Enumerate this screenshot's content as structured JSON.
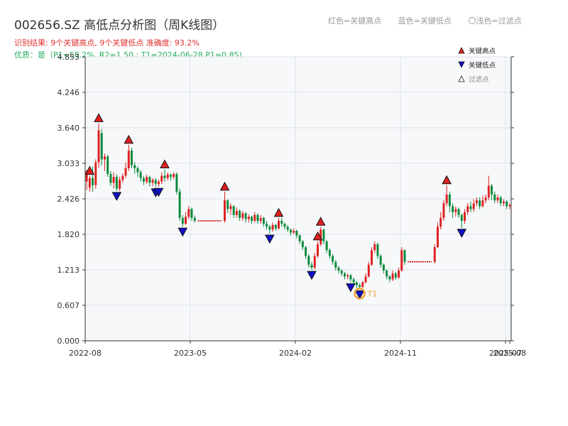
{
  "header": {
    "title": "002656.SZ 高低点分析图（周K线图）",
    "result_text": "识别结果: 9个关键高点, 9个关键低点   准确度: 93.2%",
    "quality_text": "优质：是（P1=58.2%, R2=1.50 ; T1=2024-06-28 P1=0.85)"
  },
  "top_legend": {
    "red": "红色=关键高点",
    "blue": "蓝色=关键低点",
    "light": "〇浅色=过滤点"
  },
  "colors": {
    "up": "#e02020",
    "down": "#0a8a3a",
    "high_marker": "#e02020",
    "low_marker": "#1010c8",
    "t1_ring": "#f0a030",
    "gap_line": "#cc0000",
    "plot_bg": "#f6f8fa",
    "grid": "#dde2e8"
  },
  "chart_data": {
    "type": "candlestick",
    "period": "weekly",
    "grid": true,
    "y_ticks": [
      "0.000",
      "0.607",
      "1.213",
      "1.820",
      "2.426",
      "3.033",
      "3.640",
      "4.246",
      "4.853"
    ],
    "ylim": [
      0,
      4.853
    ],
    "x_ticks": [
      "2022-08",
      "2023-05",
      "2024-02",
      "2024-11",
      "2025-07",
      "2025-08"
    ],
    "legend": {
      "placement": "top-right",
      "items": [
        {
          "label": "关键高点",
          "marker": "high"
        },
        {
          "label": "关键低点",
          "marker": "low"
        },
        {
          "label": "过滤点",
          "marker": "filtered"
        }
      ]
    },
    "annotation": "T1",
    "key_highs": [
      3.72,
      3.35,
      2.93,
      2.55,
      2.1,
      1.95,
      1.7,
      2.66,
      2.82
    ],
    "key_lows": [
      2.62,
      2.56,
      2.63,
      1.95,
      1.83,
      1.21,
      0.88,
      1.0,
      1.93
    ],
    "t1_value": 0.88,
    "candles": [
      [
        2.72,
        2.9,
        2.92,
        2.58
      ],
      [
        2.62,
        2.78,
        2.82,
        2.55
      ],
      [
        2.78,
        2.66,
        2.98,
        2.55
      ],
      [
        2.66,
        3.05,
        3.1,
        2.6
      ],
      [
        3.05,
        3.6,
        3.72,
        2.95
      ],
      [
        3.55,
        3.1,
        3.62,
        3.0
      ],
      [
        3.1,
        3.15,
        3.2,
        2.9
      ],
      [
        3.15,
        2.85,
        3.18,
        2.8
      ],
      [
        2.85,
        2.7,
        2.9,
        2.65
      ],
      [
        2.7,
        2.8,
        2.88,
        2.6
      ],
      [
        2.8,
        2.6,
        2.85,
        2.56
      ],
      [
        2.6,
        2.75,
        2.8,
        2.56
      ],
      [
        2.75,
        2.82,
        2.86,
        2.7
      ],
      [
        2.82,
        2.95,
        3.05,
        2.78
      ],
      [
        2.95,
        3.25,
        3.35,
        2.9
      ],
      [
        3.25,
        3.0,
        3.3,
        2.95
      ],
      [
        3.0,
        2.95,
        3.05,
        2.85
      ],
      [
        2.95,
        2.88,
        2.98,
        2.8
      ],
      [
        2.88,
        2.78,
        2.92,
        2.72
      ],
      [
        2.78,
        2.72,
        2.82,
        2.66
      ],
      [
        2.72,
        2.8,
        2.84,
        2.68
      ],
      [
        2.8,
        2.7,
        2.82,
        2.64
      ],
      [
        2.7,
        2.75,
        2.78,
        2.64
      ],
      [
        2.75,
        2.68,
        2.78,
        2.63
      ],
      [
        2.68,
        2.72,
        2.76,
        2.63
      ],
      [
        2.72,
        2.82,
        2.88,
        2.68
      ],
      [
        2.82,
        2.78,
        2.93,
        2.72
      ],
      [
        2.78,
        2.84,
        2.88,
        2.74
      ],
      [
        2.84,
        2.8,
        2.86,
        2.74
      ],
      [
        2.8,
        2.85,
        2.88,
        2.76
      ],
      [
        2.85,
        2.55,
        2.88,
        2.5
      ],
      [
        2.55,
        2.1,
        2.6,
        2.05
      ],
      [
        2.1,
        2.0,
        2.15,
        1.95
      ],
      [
        2.0,
        2.12,
        2.2,
        1.98
      ],
      [
        2.12,
        2.25,
        2.3,
        2.08
      ],
      [
        2.25,
        2.1,
        2.28,
        2.05
      ],
      [
        2.1,
        2.05,
        2.14,
        2.02
      ],
      [
        2.05,
        2.05,
        2.06,
        2.04
      ],
      [
        2.05,
        2.05,
        2.06,
        2.04
      ],
      [
        2.05,
        2.05,
        2.06,
        2.04
      ],
      [
        2.05,
        2.05,
        2.06,
        2.04
      ],
      [
        2.05,
        2.05,
        2.06,
        2.04
      ],
      [
        2.05,
        2.05,
        2.06,
        2.04
      ],
      [
        2.05,
        2.05,
        2.06,
        2.04
      ],
      [
        2.05,
        2.05,
        2.06,
        2.04
      ],
      [
        2.05,
        2.05,
        2.06,
        2.04
      ],
      [
        2.05,
        2.4,
        2.55,
        2.02
      ],
      [
        2.4,
        2.25,
        2.42,
        2.18
      ],
      [
        2.25,
        2.3,
        2.35,
        2.15
      ],
      [
        2.3,
        2.15,
        2.32,
        2.1
      ],
      [
        2.15,
        2.22,
        2.28,
        2.1
      ],
      [
        2.22,
        2.1,
        2.25,
        2.05
      ],
      [
        2.1,
        2.18,
        2.22,
        2.05
      ],
      [
        2.18,
        2.08,
        2.2,
        2.02
      ],
      [
        2.08,
        2.12,
        2.16,
        2.02
      ],
      [
        2.12,
        2.05,
        2.14,
        2.0
      ],
      [
        2.05,
        2.15,
        2.2,
        2.02
      ],
      [
        2.15,
        2.05,
        2.18,
        2.0
      ],
      [
        2.05,
        2.1,
        2.15,
        2.0
      ],
      [
        2.1,
        2.0,
        2.12,
        1.95
      ],
      [
        2.0,
        1.95,
        2.05,
        1.9
      ],
      [
        1.95,
        1.9,
        1.98,
        1.83
      ],
      [
        1.9,
        1.98,
        2.02,
        1.86
      ],
      [
        1.98,
        1.92,
        2.0,
        1.88
      ],
      [
        1.92,
        2.05,
        2.1,
        1.9
      ],
      [
        2.05,
        2.0,
        2.1,
        1.95
      ],
      [
        2.0,
        1.95,
        2.02,
        1.9
      ],
      [
        1.95,
        1.9,
        1.98,
        1.86
      ],
      [
        1.9,
        1.85,
        1.92,
        1.8
      ],
      [
        1.85,
        1.88,
        1.92,
        1.82
      ],
      [
        1.88,
        1.8,
        1.9,
        1.75
      ],
      [
        1.8,
        1.7,
        1.82,
        1.65
      ],
      [
        1.7,
        1.6,
        1.72,
        1.55
      ],
      [
        1.6,
        1.45,
        1.62,
        1.4
      ],
      [
        1.45,
        1.3,
        1.48,
        1.25
      ],
      [
        1.3,
        1.25,
        1.35,
        1.21
      ],
      [
        1.25,
        1.45,
        1.5,
        1.22
      ],
      [
        1.45,
        1.65,
        1.7,
        1.42
      ],
      [
        1.65,
        1.9,
        1.95,
        1.62
      ],
      [
        1.9,
        1.7,
        1.92,
        1.65
      ],
      [
        1.7,
        1.55,
        1.72,
        1.5
      ],
      [
        1.55,
        1.45,
        1.58,
        1.4
      ],
      [
        1.45,
        1.35,
        1.48,
        1.3
      ],
      [
        1.35,
        1.25,
        1.38,
        1.2
      ],
      [
        1.25,
        1.2,
        1.28,
        1.15
      ],
      [
        1.2,
        1.15,
        1.22,
        1.1
      ],
      [
        1.15,
        1.1,
        1.18,
        1.05
      ],
      [
        1.1,
        1.12,
        1.15,
        1.05
      ],
      [
        1.12,
        1.05,
        1.14,
        1.0
      ],
      [
        1.05,
        1.0,
        1.08,
        0.95
      ],
      [
        1.0,
        0.95,
        1.02,
        0.9
      ],
      [
        0.95,
        0.92,
        0.98,
        0.88
      ],
      [
        0.92,
        1.0,
        1.02,
        0.9
      ],
      [
        1.0,
        1.1,
        1.15,
        0.98
      ],
      [
        1.1,
        1.3,
        1.35,
        1.08
      ],
      [
        1.3,
        1.55,
        1.6,
        1.28
      ],
      [
        1.55,
        1.65,
        1.7,
        1.5
      ],
      [
        1.65,
        1.45,
        1.68,
        1.4
      ],
      [
        1.45,
        1.3,
        1.48,
        1.25
      ],
      [
        1.3,
        1.2,
        1.32,
        1.15
      ],
      [
        1.2,
        1.1,
        1.22,
        1.05
      ],
      [
        1.1,
        1.05,
        1.12,
        1.0
      ],
      [
        1.05,
        1.15,
        1.2,
        1.02
      ],
      [
        1.15,
        1.08,
        1.18,
        1.04
      ],
      [
        1.08,
        1.2,
        1.25,
        1.06
      ],
      [
        1.2,
        1.55,
        1.6,
        1.18
      ],
      [
        1.55,
        1.35,
        1.56,
        1.3
      ],
      [
        1.35,
        1.35,
        1.36,
        1.34
      ],
      [
        1.35,
        1.35,
        1.36,
        1.34
      ],
      [
        1.35,
        1.35,
        1.36,
        1.34
      ],
      [
        1.35,
        1.35,
        1.36,
        1.34
      ],
      [
        1.35,
        1.35,
        1.36,
        1.34
      ],
      [
        1.35,
        1.35,
        1.36,
        1.34
      ],
      [
        1.35,
        1.35,
        1.36,
        1.34
      ],
      [
        1.35,
        1.35,
        1.36,
        1.34
      ],
      [
        1.35,
        1.35,
        1.36,
        1.34
      ],
      [
        1.35,
        1.6,
        1.65,
        1.32
      ],
      [
        1.6,
        1.95,
        2.02,
        1.58
      ],
      [
        1.95,
        2.1,
        2.2,
        1.9
      ],
      [
        2.1,
        2.35,
        2.4,
        2.05
      ],
      [
        2.35,
        2.5,
        2.66,
        2.3
      ],
      [
        2.5,
        2.3,
        2.55,
        2.2
      ],
      [
        2.3,
        2.2,
        2.35,
        2.1
      ],
      [
        2.2,
        2.25,
        2.3,
        2.12
      ],
      [
        2.25,
        2.15,
        2.28,
        2.1
      ],
      [
        2.15,
        2.05,
        2.18,
        1.93
      ],
      [
        2.05,
        2.2,
        2.25,
        2.0
      ],
      [
        2.2,
        2.3,
        2.35,
        2.15
      ],
      [
        2.3,
        2.25,
        2.38,
        2.2
      ],
      [
        2.25,
        2.35,
        2.42,
        2.2
      ],
      [
        2.35,
        2.4,
        2.45,
        2.3
      ],
      [
        2.4,
        2.3,
        2.45,
        2.25
      ],
      [
        2.3,
        2.4,
        2.48,
        2.28
      ],
      [
        2.4,
        2.45,
        2.5,
        2.35
      ],
      [
        2.45,
        2.65,
        2.82,
        2.4
      ],
      [
        2.65,
        2.5,
        2.68,
        2.4
      ],
      [
        2.5,
        2.4,
        2.55,
        2.35
      ],
      [
        2.4,
        2.45,
        2.5,
        2.35
      ],
      [
        2.45,
        2.35,
        2.48,
        2.3
      ],
      [
        2.35,
        2.38,
        2.42,
        2.3
      ],
      [
        2.38,
        2.3,
        2.4,
        2.25
      ],
      [
        2.3,
        2.32,
        2.35,
        2.25
      ]
    ]
  }
}
